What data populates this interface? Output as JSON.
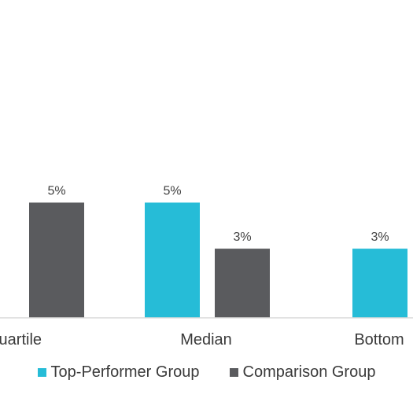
{
  "chart_data": {
    "type": "bar",
    "categories": [
      "Quartile",
      "Median",
      "Bottom"
    ],
    "series": [
      {
        "name": "Top-Performer Group",
        "color": "#26BCD7",
        "values": [
          null,
          5,
          3
        ],
        "labels": [
          "",
          "5%",
          "3%"
        ]
      },
      {
        "name": "Comparison Group",
        "color": "#5A5B5E",
        "values": [
          5,
          3,
          null
        ],
        "labels": [
          "5%",
          "3%",
          ""
        ]
      }
    ],
    "ylim": [
      0,
      8
    ],
    "grid": false,
    "legend_position": "bottom",
    "title": "",
    "xlabel": "",
    "ylabel": ""
  },
  "legend": {
    "top_label": "Top-Performer Group",
    "comparison_label": "Comparison Group"
  }
}
